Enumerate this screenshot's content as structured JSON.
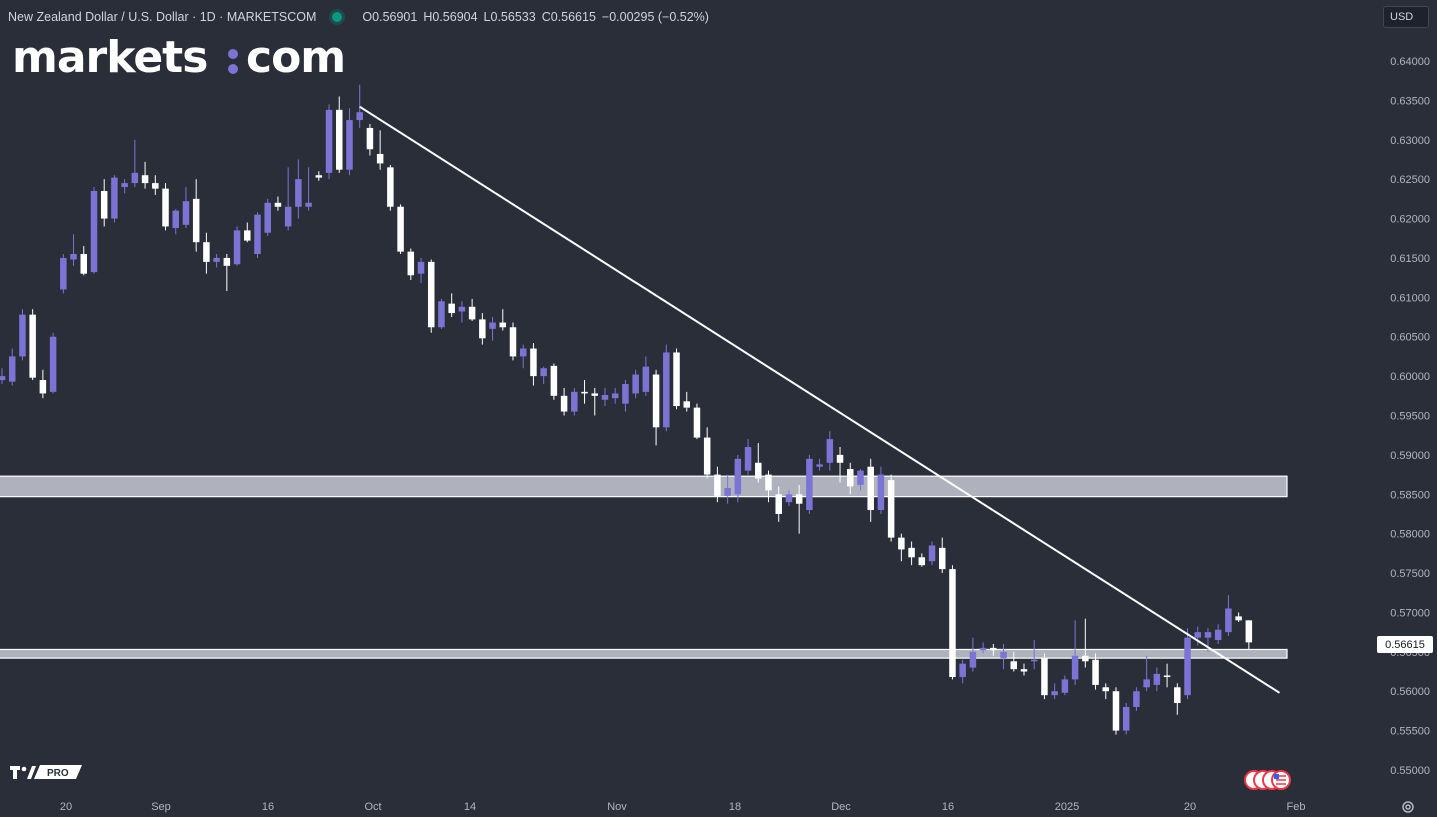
{
  "header": {
    "symbol": "New Zealand Dollar / U.S. Dollar · 1D · MARKETSCOM",
    "open_label": "O",
    "open": "0.56901",
    "high_label": "H",
    "high": "0.56904",
    "low_label": "L",
    "low": "0.56533",
    "close_label": "C",
    "close": "0.56615",
    "change": "−0.00295 (−0.52%)"
  },
  "brand": {
    "logo_text": "markets:com"
  },
  "currency_selector": {
    "value": "USD"
  },
  "last_price_tag": "0.56615",
  "colors": {
    "background": "#2a2e39",
    "bull": "#7b74d4",
    "bear": "#ffffff",
    "grid_text": "#b2b5be",
    "status_dot": "#089981"
  },
  "chart_data": {
    "type": "candlestick",
    "x_ticks": [
      "20",
      "Sep",
      "16",
      "Oct",
      "14",
      "Nov",
      "18",
      "Dec",
      "16",
      "2025",
      "20",
      "Feb"
    ],
    "y_ticks": [
      "0.64000",
      "0.63500",
      "0.63000",
      "0.62500",
      "0.62000",
      "0.61500",
      "0.61000",
      "0.60500",
      "0.60000",
      "0.59500",
      "0.59000",
      "0.58500",
      "0.58000",
      "0.57500",
      "0.57000",
      "0.56500",
      "0.56000",
      "0.55500",
      "0.55000"
    ],
    "ylim": [
      0.5475,
      0.6425
    ],
    "candles": [
      {
        "o": 0.5995,
        "h": 0.601,
        "l": 0.599,
        "c": 0.6
      },
      {
        "o": 0.5993,
        "h": 0.6035,
        "l": 0.5988,
        "c": 0.6025
      },
      {
        "o": 0.6025,
        "h": 0.6085,
        "l": 0.602,
        "c": 0.6078
      },
      {
        "o": 0.6078,
        "h": 0.6085,
        "l": 0.5995,
        "c": 0.5998
      },
      {
        "o": 0.5995,
        "h": 0.6008,
        "l": 0.5972,
        "c": 0.5978
      },
      {
        "o": 0.598,
        "h": 0.6055,
        "l": 0.5978,
        "c": 0.605
      },
      {
        "o": 0.611,
        "h": 0.6155,
        "l": 0.6105,
        "c": 0.615
      },
      {
        "o": 0.6148,
        "h": 0.618,
        "l": 0.614,
        "c": 0.6155
      },
      {
        "o": 0.6155,
        "h": 0.6165,
        "l": 0.6128,
        "c": 0.613
      },
      {
        "o": 0.6132,
        "h": 0.624,
        "l": 0.613,
        "c": 0.6235
      },
      {
        "o": 0.6235,
        "h": 0.625,
        "l": 0.619,
        "c": 0.62
      },
      {
        "o": 0.62,
        "h": 0.6255,
        "l": 0.6195,
        "c": 0.6252
      },
      {
        "o": 0.624,
        "h": 0.625,
        "l": 0.6232,
        "c": 0.6245
      },
      {
        "o": 0.6245,
        "h": 0.63,
        "l": 0.624,
        "c": 0.6258
      },
      {
        "o": 0.6255,
        "h": 0.6272,
        "l": 0.6238,
        "c": 0.6245
      },
      {
        "o": 0.6245,
        "h": 0.6255,
        "l": 0.623,
        "c": 0.6238
      },
      {
        "o": 0.6238,
        "h": 0.6245,
        "l": 0.6185,
        "c": 0.619
      },
      {
        "o": 0.6188,
        "h": 0.6212,
        "l": 0.618,
        "c": 0.621
      },
      {
        "o": 0.6192,
        "h": 0.624,
        "l": 0.6188,
        "c": 0.6222
      },
      {
        "o": 0.6225,
        "h": 0.625,
        "l": 0.6158,
        "c": 0.617
      },
      {
        "o": 0.617,
        "h": 0.6182,
        "l": 0.613,
        "c": 0.6145
      },
      {
        "o": 0.6145,
        "h": 0.6155,
        "l": 0.6138,
        "c": 0.615
      },
      {
        "o": 0.615,
        "h": 0.6155,
        "l": 0.6108,
        "c": 0.614
      },
      {
        "o": 0.6142,
        "h": 0.619,
        "l": 0.614,
        "c": 0.6185
      },
      {
        "o": 0.6185,
        "h": 0.6195,
        "l": 0.617,
        "c": 0.6172
      },
      {
        "o": 0.6155,
        "h": 0.6208,
        "l": 0.615,
        "c": 0.6205
      },
      {
        "o": 0.6182,
        "h": 0.6225,
        "l": 0.6178,
        "c": 0.622
      },
      {
        "o": 0.622,
        "h": 0.6228,
        "l": 0.621,
        "c": 0.6215
      },
      {
        "o": 0.619,
        "h": 0.6265,
        "l": 0.6185,
        "c": 0.6215
      },
      {
        "o": 0.6215,
        "h": 0.6275,
        "l": 0.62,
        "c": 0.625
      },
      {
        "o": 0.6215,
        "h": 0.6265,
        "l": 0.621,
        "c": 0.622
      },
      {
        "o": 0.6255,
        "h": 0.626,
        "l": 0.6248,
        "c": 0.6252
      },
      {
        "o": 0.6258,
        "h": 0.6345,
        "l": 0.625,
        "c": 0.6338
      },
      {
        "o": 0.6338,
        "h": 0.6355,
        "l": 0.6258,
        "c": 0.6262
      },
      {
        "o": 0.6262,
        "h": 0.634,
        "l": 0.6255,
        "c": 0.6325
      },
      {
        "o": 0.6325,
        "h": 0.637,
        "l": 0.6315,
        "c": 0.6335
      },
      {
        "o": 0.6315,
        "h": 0.632,
        "l": 0.628,
        "c": 0.6288
      },
      {
        "o": 0.6282,
        "h": 0.6312,
        "l": 0.6262,
        "c": 0.627
      },
      {
        "o": 0.6265,
        "h": 0.6268,
        "l": 0.621,
        "c": 0.6215
      },
      {
        "o": 0.6215,
        "h": 0.6218,
        "l": 0.6155,
        "c": 0.6158
      },
      {
        "o": 0.6158,
        "h": 0.6162,
        "l": 0.6122,
        "c": 0.6128
      },
      {
        "o": 0.613,
        "h": 0.615,
        "l": 0.6118,
        "c": 0.6145
      },
      {
        "o": 0.6145,
        "h": 0.6148,
        "l": 0.6055,
        "c": 0.6062
      },
      {
        "o": 0.6062,
        "h": 0.6098,
        "l": 0.606,
        "c": 0.6095
      },
      {
        "o": 0.6092,
        "h": 0.6105,
        "l": 0.6075,
        "c": 0.608
      },
      {
        "o": 0.6082,
        "h": 0.6095,
        "l": 0.6068,
        "c": 0.6088
      },
      {
        "o": 0.6088,
        "h": 0.6098,
        "l": 0.607,
        "c": 0.6072
      },
      {
        "o": 0.6072,
        "h": 0.608,
        "l": 0.604,
        "c": 0.6048
      },
      {
        "o": 0.606,
        "h": 0.6075,
        "l": 0.6045,
        "c": 0.6068
      },
      {
        "o": 0.6068,
        "h": 0.6085,
        "l": 0.6058,
        "c": 0.6062
      },
      {
        "o": 0.6062,
        "h": 0.6068,
        "l": 0.602,
        "c": 0.6025
      },
      {
        "o": 0.6025,
        "h": 0.604,
        "l": 0.601,
        "c": 0.6035
      },
      {
        "o": 0.6035,
        "h": 0.6042,
        "l": 0.5988,
        "c": 0.6
      },
      {
        "o": 0.6,
        "h": 0.6012,
        "l": 0.599,
        "c": 0.601
      },
      {
        "o": 0.6013,
        "h": 0.6016,
        "l": 0.597,
        "c": 0.5975
      },
      {
        "o": 0.5975,
        "h": 0.5985,
        "l": 0.595,
        "c": 0.5955
      },
      {
        "o": 0.5955,
        "h": 0.5985,
        "l": 0.595,
        "c": 0.598
      },
      {
        "o": 0.598,
        "h": 0.5995,
        "l": 0.5965,
        "c": 0.5978
      },
      {
        "o": 0.5978,
        "h": 0.5985,
        "l": 0.595,
        "c": 0.5975
      },
      {
        "o": 0.597,
        "h": 0.5985,
        "l": 0.5962,
        "c": 0.5976
      },
      {
        "o": 0.5972,
        "h": 0.5985,
        "l": 0.5965,
        "c": 0.5978
      },
      {
        "o": 0.5965,
        "h": 0.5995,
        "l": 0.5955,
        "c": 0.599
      },
      {
        "o": 0.5978,
        "h": 0.6008,
        "l": 0.5972,
        "c": 0.6002
      },
      {
        "o": 0.598,
        "h": 0.6025,
        "l": 0.5975,
        "c": 0.6012
      },
      {
        "o": 0.6002,
        "h": 0.6008,
        "l": 0.5912,
        "c": 0.5935
      },
      {
        "o": 0.5935,
        "h": 0.604,
        "l": 0.593,
        "c": 0.603
      },
      {
        "o": 0.603,
        "h": 0.6035,
        "l": 0.5958,
        "c": 0.5962
      },
      {
        "o": 0.5968,
        "h": 0.598,
        "l": 0.5955,
        "c": 0.596
      },
      {
        "o": 0.596,
        "h": 0.5965,
        "l": 0.592,
        "c": 0.5922
      },
      {
        "o": 0.5922,
        "h": 0.5935,
        "l": 0.587,
        "c": 0.5875
      },
      {
        "o": 0.5875,
        "h": 0.5885,
        "l": 0.584,
        "c": 0.5848
      },
      {
        "o": 0.5848,
        "h": 0.5875,
        "l": 0.5838,
        "c": 0.5858
      },
      {
        "o": 0.585,
        "h": 0.59,
        "l": 0.584,
        "c": 0.5895
      },
      {
        "o": 0.588,
        "h": 0.592,
        "l": 0.5875,
        "c": 0.591
      },
      {
        "o": 0.589,
        "h": 0.5915,
        "l": 0.5865,
        "c": 0.587
      },
      {
        "o": 0.5875,
        "h": 0.588,
        "l": 0.584,
        "c": 0.5855
      },
      {
        "o": 0.585,
        "h": 0.586,
        "l": 0.5815,
        "c": 0.5825
      },
      {
        "o": 0.584,
        "h": 0.5855,
        "l": 0.5835,
        "c": 0.585
      },
      {
        "o": 0.585,
        "h": 0.5862,
        "l": 0.58,
        "c": 0.5838
      },
      {
        "o": 0.583,
        "h": 0.59,
        "l": 0.5825,
        "c": 0.5895
      },
      {
        "o": 0.5885,
        "h": 0.5895,
        "l": 0.588,
        "c": 0.5888
      },
      {
        "o": 0.589,
        "h": 0.593,
        "l": 0.588,
        "c": 0.592
      },
      {
        "o": 0.59,
        "h": 0.591,
        "l": 0.5865,
        "c": 0.589
      },
      {
        "o": 0.5882,
        "h": 0.589,
        "l": 0.585,
        "c": 0.586
      },
      {
        "o": 0.5862,
        "h": 0.5882,
        "l": 0.5855,
        "c": 0.588
      },
      {
        "o": 0.5885,
        "h": 0.5895,
        "l": 0.5815,
        "c": 0.583
      },
      {
        "o": 0.583,
        "h": 0.5885,
        "l": 0.5825,
        "c": 0.5875
      },
      {
        "o": 0.5868,
        "h": 0.5875,
        "l": 0.579,
        "c": 0.5795
      },
      {
        "o": 0.5795,
        "h": 0.58,
        "l": 0.5765,
        "c": 0.578
      },
      {
        "o": 0.5782,
        "h": 0.579,
        "l": 0.576,
        "c": 0.577
      },
      {
        "o": 0.577,
        "h": 0.5775,
        "l": 0.5758,
        "c": 0.576
      },
      {
        "o": 0.5765,
        "h": 0.579,
        "l": 0.576,
        "c": 0.5785
      },
      {
        "o": 0.5782,
        "h": 0.5795,
        "l": 0.575,
        "c": 0.5755
      },
      {
        "o": 0.5755,
        "h": 0.576,
        "l": 0.5615,
        "c": 0.5618
      },
      {
        "o": 0.5618,
        "h": 0.564,
        "l": 0.561,
        "c": 0.5635
      },
      {
        "o": 0.563,
        "h": 0.5668,
        "l": 0.5625,
        "c": 0.565
      },
      {
        "o": 0.5652,
        "h": 0.5662,
        "l": 0.5648,
        "c": 0.5655
      },
      {
        "o": 0.5655,
        "h": 0.566,
        "l": 0.5645,
        "c": 0.5652
      },
      {
        "o": 0.5642,
        "h": 0.566,
        "l": 0.5628,
        "c": 0.565
      },
      {
        "o": 0.5638,
        "h": 0.565,
        "l": 0.5625,
        "c": 0.5628
      },
      {
        "o": 0.5628,
        "h": 0.5635,
        "l": 0.562,
        "c": 0.5625
      },
      {
        "o": 0.5638,
        "h": 0.5665,
        "l": 0.5628,
        "c": 0.564
      },
      {
        "o": 0.5642,
        "h": 0.5648,
        "l": 0.559,
        "c": 0.5595
      },
      {
        "o": 0.5595,
        "h": 0.561,
        "l": 0.559,
        "c": 0.56
      },
      {
        "o": 0.5598,
        "h": 0.562,
        "l": 0.5595,
        "c": 0.5615
      },
      {
        "o": 0.5615,
        "h": 0.569,
        "l": 0.5608,
        "c": 0.5645
      },
      {
        "o": 0.5645,
        "h": 0.5692,
        "l": 0.563,
        "c": 0.5638
      },
      {
        "o": 0.564,
        "h": 0.5648,
        "l": 0.5602,
        "c": 0.5608
      },
      {
        "o": 0.5605,
        "h": 0.561,
        "l": 0.559,
        "c": 0.56
      },
      {
        "o": 0.56,
        "h": 0.5605,
        "l": 0.5545,
        "c": 0.555
      },
      {
        "o": 0.555,
        "h": 0.5585,
        "l": 0.5545,
        "c": 0.558
      },
      {
        "o": 0.558,
        "h": 0.5605,
        "l": 0.5575,
        "c": 0.56
      },
      {
        "o": 0.5605,
        "h": 0.5645,
        "l": 0.56,
        "c": 0.5615
      },
      {
        "o": 0.5608,
        "h": 0.563,
        "l": 0.56,
        "c": 0.5622
      },
      {
        "o": 0.562,
        "h": 0.5635,
        "l": 0.5605,
        "c": 0.5618
      },
      {
        "o": 0.5605,
        "h": 0.561,
        "l": 0.557,
        "c": 0.5585
      },
      {
        "o": 0.5595,
        "h": 0.568,
        "l": 0.559,
        "c": 0.5668
      },
      {
        "o": 0.5668,
        "h": 0.5682,
        "l": 0.5658,
        "c": 0.5675
      },
      {
        "o": 0.5668,
        "h": 0.568,
        "l": 0.565,
        "c": 0.5675
      },
      {
        "o": 0.5665,
        "h": 0.5685,
        "l": 0.566,
        "c": 0.5678
      },
      {
        "o": 0.5675,
        "h": 0.5722,
        "l": 0.567,
        "c": 0.5705
      },
      {
        "o": 0.5695,
        "h": 0.57,
        "l": 0.5688,
        "c": 0.569
      },
      {
        "o": 0.569,
        "h": 0.569,
        "l": 0.5653,
        "c": 0.5662
      }
    ],
    "trendline": {
      "from": {
        "index": 35,
        "price": 0.6342
      },
      "to": {
        "index": 125,
        "price": 0.5598
      }
    },
    "zones": [
      {
        "y_top": 0.5873,
        "y_bottom": 0.5847
      },
      {
        "y_top": 0.5653,
        "y_bottom": 0.5642
      }
    ],
    "last_price": 0.56615
  }
}
